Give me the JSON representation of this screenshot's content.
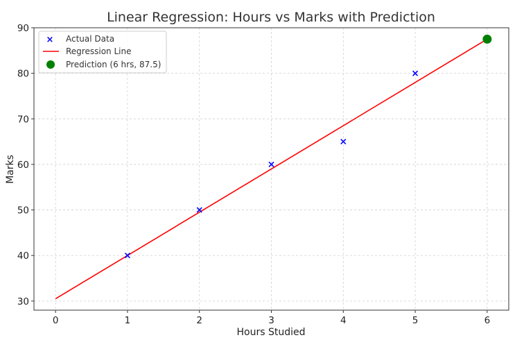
{
  "chart_data": {
    "type": "scatter",
    "title": "Linear Regression: Hours vs Marks with Prediction",
    "xlabel": "Hours Studied",
    "ylabel": "Marks",
    "xlim": [
      -0.3,
      6.3
    ],
    "ylim": [
      28,
      90
    ],
    "xticks": [
      0,
      1,
      2,
      3,
      4,
      5,
      6
    ],
    "yticks": [
      30,
      40,
      50,
      60,
      70,
      80,
      90
    ],
    "grid": true,
    "legend_position": "top-left",
    "series": [
      {
        "name": "Actual Data",
        "kind": "scatter",
        "marker": "x",
        "color": "#0000ff",
        "x": [
          1,
          2,
          3,
          4,
          5
        ],
        "y": [
          40,
          50,
          60,
          65,
          80
        ]
      },
      {
        "name": "Regression Line",
        "kind": "line",
        "color": "#ff0000",
        "x": [
          0,
          6
        ],
        "y": [
          30.5,
          87.5
        ]
      },
      {
        "name": "Prediction (6 hrs, 87.5)",
        "kind": "scatter",
        "marker": "circle",
        "color": "#008000",
        "x": [
          6
        ],
        "y": [
          87.5
        ]
      }
    ]
  }
}
